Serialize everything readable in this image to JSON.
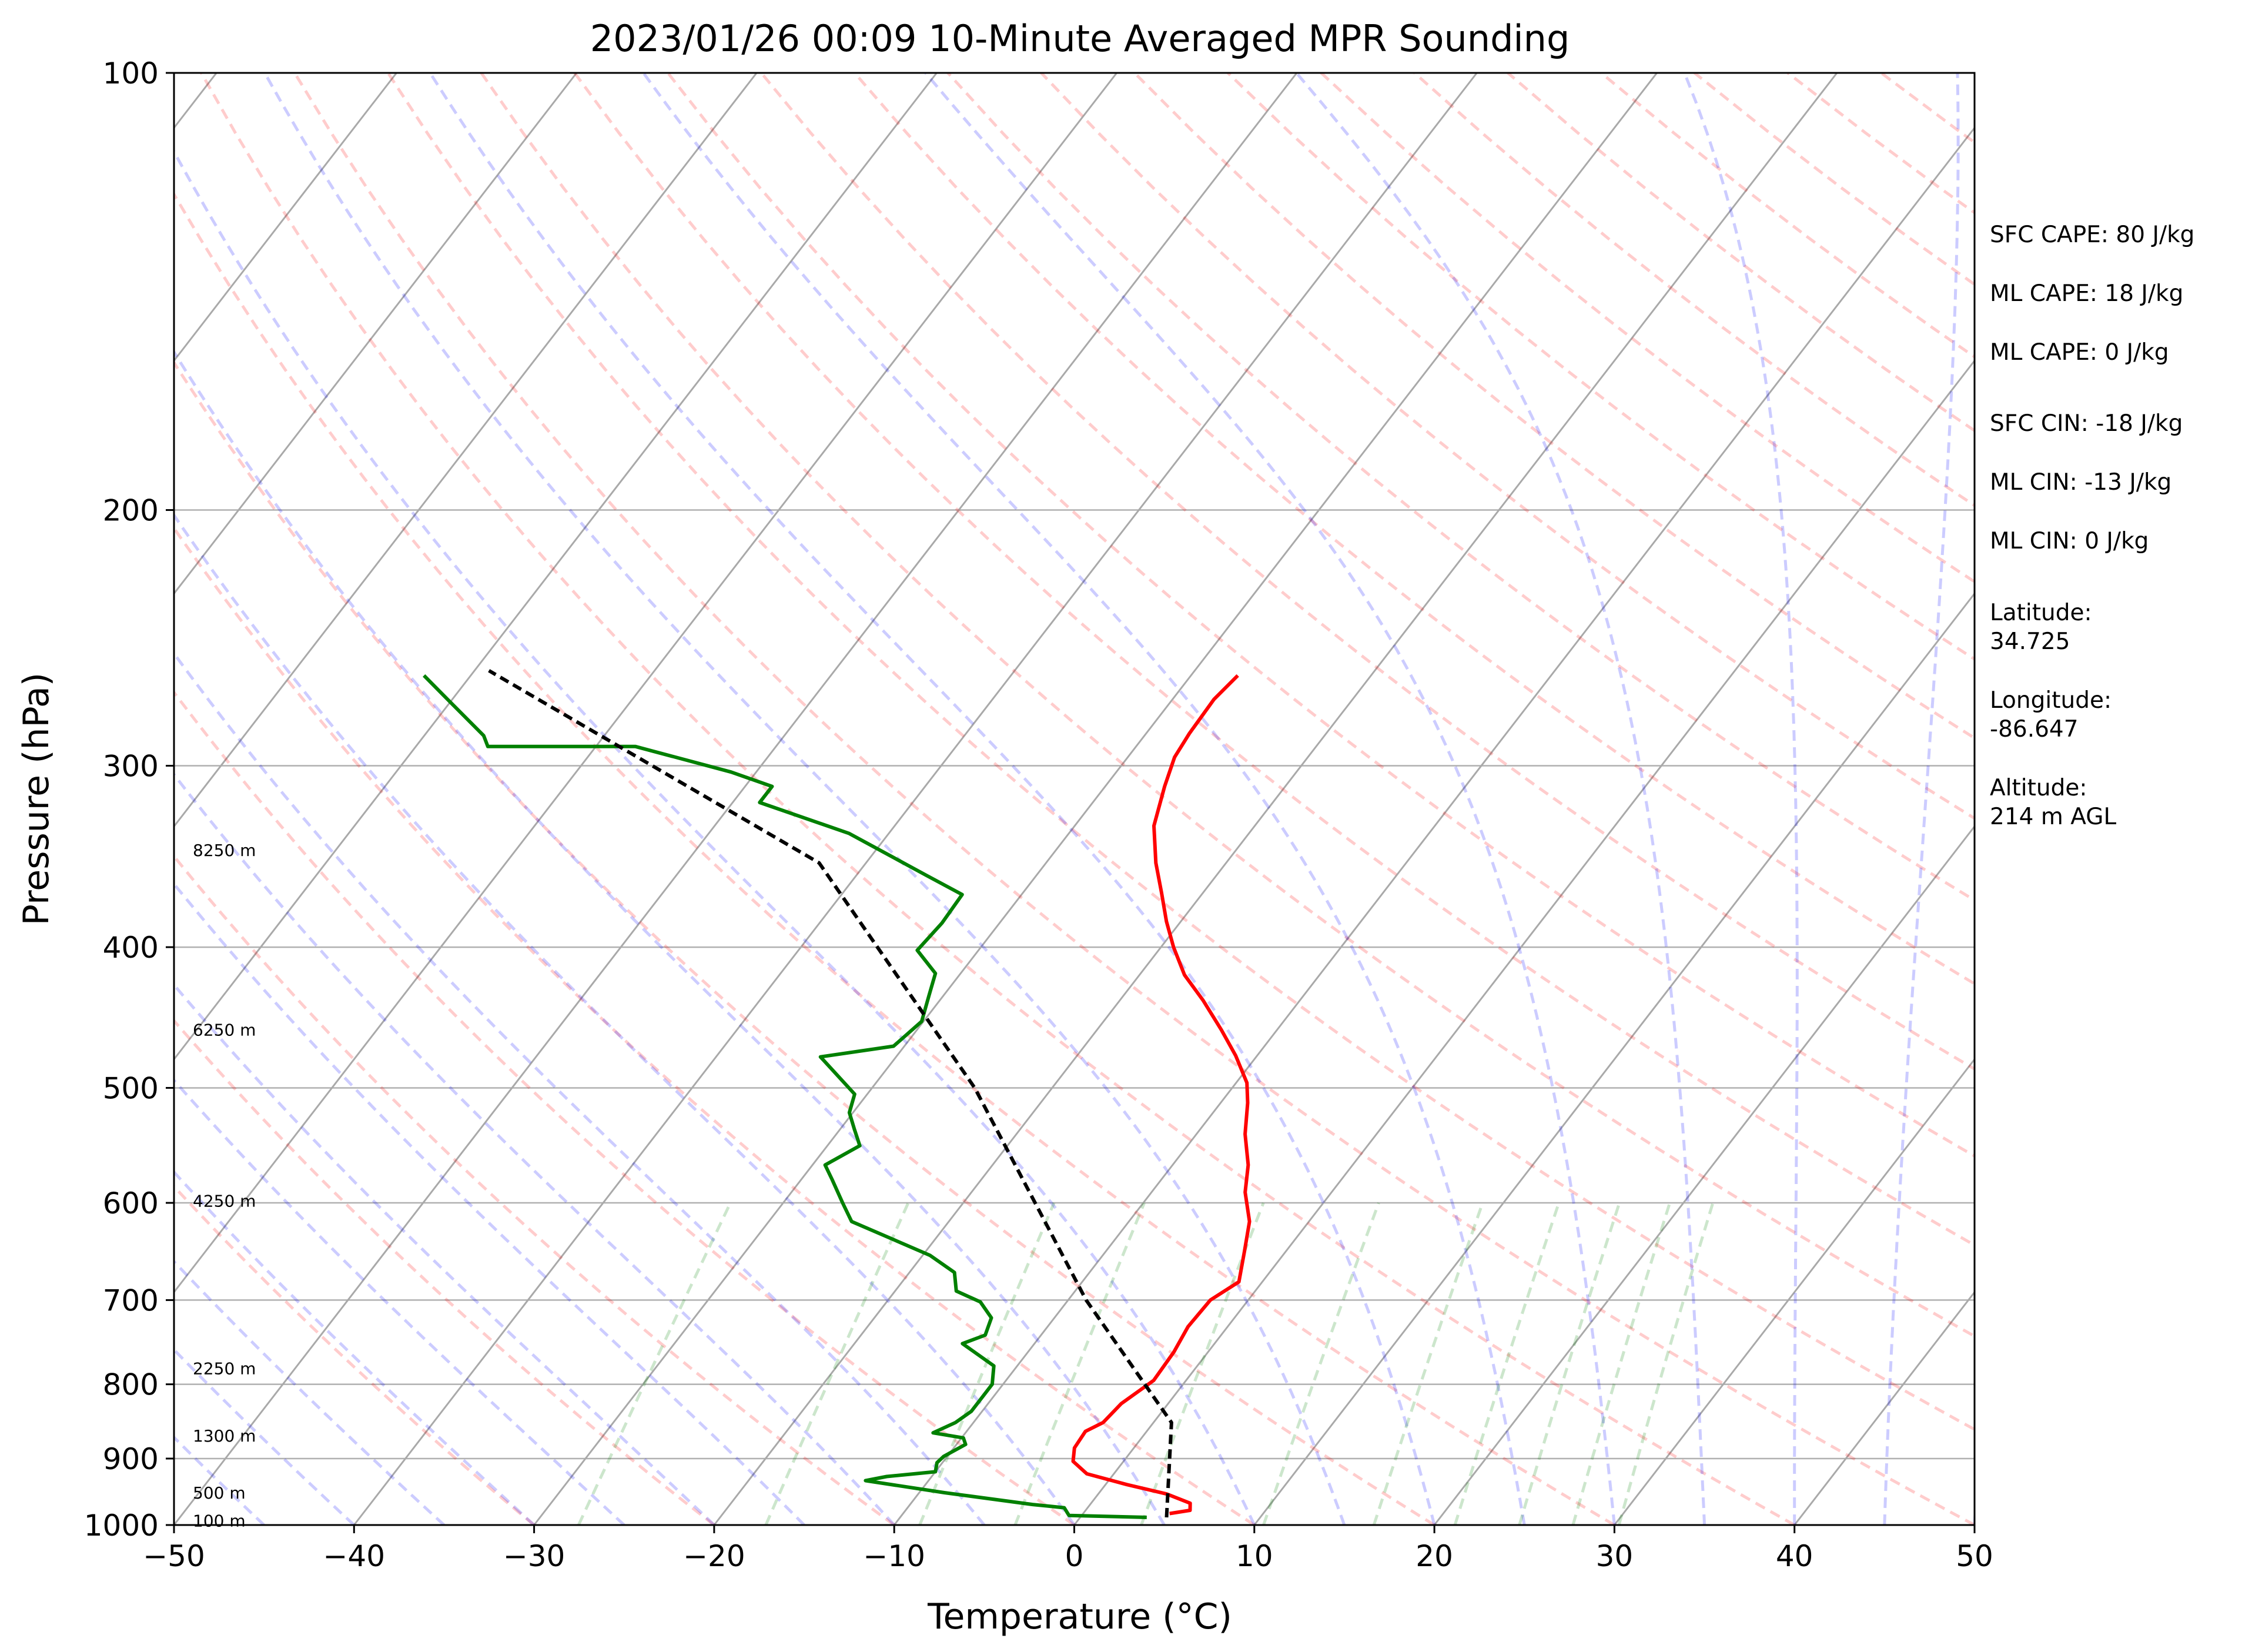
{
  "chart_data": {
    "type": "line",
    "subtype": "skew-t log-p",
    "title": "2023/01/26 00:09 10-Minute Averaged MPR Sounding",
    "xlabel": "Temperature (°C)",
    "ylabel": "Pressure (hPa)",
    "xlim": [
      -50,
      50
    ],
    "ylim": [
      1000,
      100
    ],
    "yscale": "log",
    "x_ticks": [
      -50,
      -40,
      -30,
      -20,
      -10,
      0,
      10,
      20,
      30,
      40,
      50
    ],
    "x_tick_labels": [
      "−50",
      "−40",
      "−30",
      "−20",
      "−10",
      "0",
      "10",
      "20",
      "30",
      "40",
      "50"
    ],
    "y_ticks": [
      1000,
      900,
      800,
      700,
      600,
      500,
      400,
      300,
      200,
      100
    ],
    "y_tick_labels": [
      "1000",
      "900",
      "800",
      "700",
      "600",
      "500",
      "400",
      "300",
      "200",
      "100"
    ],
    "grid": "horizontal at pressure ticks",
    "height_labels": [
      {
        "text": "100 m",
        "pressure": 993
      },
      {
        "text": "500 m",
        "pressure": 950
      },
      {
        "text": "1300 m",
        "pressure": 868
      },
      {
        "text": "2250 m",
        "pressure": 780
      },
      {
        "text": "4250 m",
        "pressure": 598
      },
      {
        "text": "6250 m",
        "pressure": 456
      },
      {
        "text": "8250 m",
        "pressure": 343
      }
    ],
    "series": [
      {
        "kind": "temperature",
        "color": "#ff0000",
        "points": [
          [
            4.8,
            982
          ],
          [
            5.8,
            977
          ],
          [
            5.5,
            966
          ],
          [
            3.8,
            952
          ],
          [
            1.2,
            938
          ],
          [
            -1.5,
            922
          ],
          [
            -2.8,
            904
          ],
          [
            -3.3,
            885
          ],
          [
            -3.4,
            862
          ],
          [
            -2.8,
            850
          ],
          [
            -2.6,
            825
          ],
          [
            -1.8,
            795
          ],
          [
            -1.9,
            760
          ],
          [
            -2.2,
            730
          ],
          [
            -2.1,
            700
          ],
          [
            -1.3,
            680
          ],
          [
            -2.3,
            648
          ],
          [
            -3.3,
            618
          ],
          [
            -4.8,
            590
          ],
          [
            -5.8,
            565
          ],
          [
            -7.3,
            538
          ],
          [
            -8.5,
            512
          ],
          [
            -9.4,
            496
          ],
          [
            -11.2,
            475
          ],
          [
            -13.1,
            456
          ],
          [
            -15.4,
            435
          ],
          [
            -17.5,
            418
          ],
          [
            -19.3,
            400
          ],
          [
            -20.8,
            384
          ],
          [
            -22.3,
            367
          ],
          [
            -23.9,
            350
          ],
          [
            -25.6,
            330
          ],
          [
            -26.7,
            310
          ],
          [
            -27.4,
            296
          ],
          [
            -27.6,
            285
          ],
          [
            -27.7,
            270
          ],
          [
            -27.4,
            260
          ]
        ]
      },
      {
        "kind": "dewpoint",
        "color": "#008000",
        "points": [
          [
            3.7,
            988
          ],
          [
            -0.7,
            985
          ],
          [
            -1.3,
            973
          ],
          [
            -3.2,
            968
          ],
          [
            -8.6,
            950
          ],
          [
            -13.5,
            932
          ],
          [
            -12.5,
            926
          ],
          [
            -10.0,
            919
          ],
          [
            -10.3,
            906
          ],
          [
            -10.2,
            897
          ],
          [
            -9.5,
            880
          ],
          [
            -9.9,
            871
          ],
          [
            -11.8,
            864
          ],
          [
            -11.0,
            850
          ],
          [
            -10.6,
            835
          ],
          [
            -10.6,
            815
          ],
          [
            -10.6,
            800
          ],
          [
            -11.3,
            777
          ],
          [
            -14.0,
            750
          ],
          [
            -13.1,
            740
          ],
          [
            -13.5,
            720
          ],
          [
            -14.8,
            702
          ],
          [
            -16.6,
            690
          ],
          [
            -17.5,
            670
          ],
          [
            -19.6,
            652
          ],
          [
            -25.4,
            618
          ],
          [
            -26.7,
            600
          ],
          [
            -28.3,
            578
          ],
          [
            -29.3,
            565
          ],
          [
            -28.2,
            548
          ],
          [
            -29.2,
            534
          ],
          [
            -30.2,
            520
          ],
          [
            -30.7,
            505
          ],
          [
            -34.2,
            476
          ],
          [
            -30.6,
            468
          ],
          [
            -30.1,
            450
          ],
          [
            -30.8,
            432
          ],
          [
            -31.4,
            417
          ],
          [
            -33.4,
            402
          ],
          [
            -33.2,
            385
          ],
          [
            -33.3,
            368
          ],
          [
            -36.1,
            357
          ],
          [
            -42.2,
            334
          ],
          [
            -48.5,
            318
          ],
          [
            -48.5,
            310
          ],
          [
            -51.4,
            303
          ],
          [
            -57.8,
            291
          ],
          [
            -66.0,
            291
          ],
          [
            -66.7,
            286
          ],
          [
            -70.5,
            269
          ],
          [
            -72.6,
            260
          ]
        ]
      },
      {
        "kind": "parcel",
        "color": "#000000",
        "style": "dashed",
        "points": [
          [
            4.8,
            988
          ],
          [
            1.0,
            850
          ],
          [
            -9.0,
            700
          ],
          [
            -24.3,
            500
          ],
          [
            -42.6,
            350
          ],
          [
            -69.2,
            258
          ]
        ]
      }
    ]
  },
  "stats": {
    "sfc_cape": "SFC CAPE: 80 J/kg",
    "ml_cape_1": "ML CAPE: 18 J/kg",
    "ml_cape_2": "ML CAPE: 0 J/kg",
    "sfc_cin": "SFC CIN: -18 J/kg",
    "ml_cin_1": "ML CIN: -13 J/kg",
    "ml_cin_2": "ML CIN: 0 J/kg",
    "latitude": "Latitude:\n34.725",
    "longitude": "Longitude:\n-86.647",
    "altitude": "Altitude:\n214 m AGL"
  }
}
